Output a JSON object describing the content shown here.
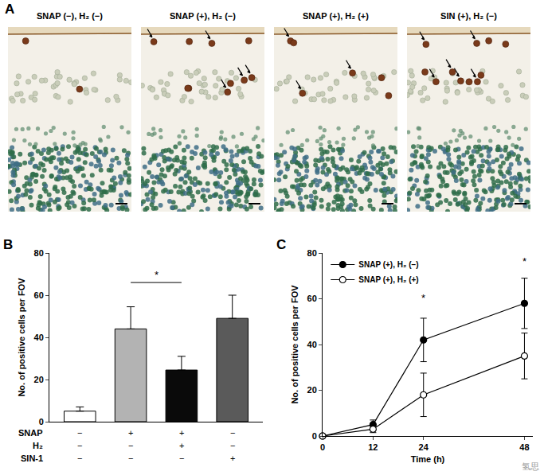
{
  "panel_A": {
    "label": "A",
    "images": [
      {
        "title": "SNAP (−), H₂ (−)"
      },
      {
        "title": "SNAP (+), H₂ (−)"
      },
      {
        "title": "SNAP (+), H₂ (+)"
      },
      {
        "title": "SIN (+), H₂ (−)"
      }
    ]
  },
  "chart_data": [
    {
      "panel_label": "B",
      "type": "bar",
      "y_label": "No. of positive cells per FOV",
      "categories": [
        null,
        null,
        null,
        null
      ],
      "values": [
        5,
        44,
        24.5,
        49
      ],
      "errors": [
        2,
        10.5,
        6.5,
        11
      ],
      "colors": [
        "#ffffff",
        "#b3b3b3",
        "#0a0a0a",
        "#5a5a5a"
      ],
      "ylim": [
        0,
        80
      ],
      "yticks": [
        0,
        20,
        40,
        60,
        80
      ],
      "grid": false,
      "condition_rows": [
        {
          "label": "SNAP",
          "signs": [
            "−",
            "+",
            "+",
            "−"
          ]
        },
        {
          "label": "H₂",
          "signs": [
            "−",
            "−",
            "+",
            "−"
          ]
        },
        {
          "label": "SIN-1",
          "signs": [
            "−",
            "−",
            "−",
            "+"
          ]
        }
      ],
      "significance": [
        {
          "from": 1,
          "to": 2,
          "y": 66,
          "text": "*"
        }
      ]
    },
    {
      "panel_label": "C",
      "type": "line",
      "x_label": "Time (h)",
      "y_label": "No. of positive cells per FOV",
      "x": [
        0,
        12,
        24,
        48
      ],
      "series": [
        {
          "name": "SNAP (+), H₂ (−)",
          "color": "#000000",
          "marker": "circle",
          "values": [
            0,
            5,
            42,
            58
          ],
          "errors": [
            0,
            2,
            9.5,
            11
          ]
        },
        {
          "name": "SNAP (+), H₂ (+)",
          "color": "#000000",
          "marker": "circle-open",
          "values": [
            0,
            3,
            18,
            35
          ],
          "errors": [
            0,
            1.5,
            9.5,
            10
          ]
        }
      ],
      "xlim": [
        0,
        50
      ],
      "xticks": [
        0,
        12,
        24,
        48
      ],
      "ylim": [
        0,
        80
      ],
      "yticks": [
        0,
        20,
        40,
        60,
        80
      ],
      "grid": false,
      "legend": "upper left",
      "annotations": [
        {
          "x": 24,
          "y": 57,
          "text": "*"
        },
        {
          "x": 48,
          "y": 73,
          "text": "*"
        }
      ]
    }
  ],
  "watermark": "氢思"
}
